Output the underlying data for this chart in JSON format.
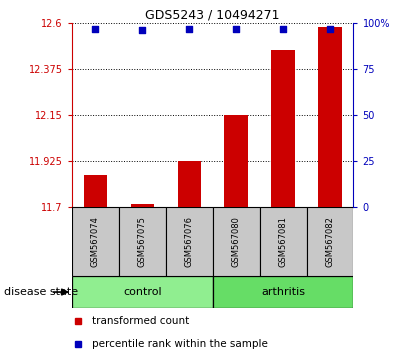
{
  "title": "GDS5243 / 10494271",
  "samples": [
    "GSM567074",
    "GSM567075",
    "GSM567076",
    "GSM567080",
    "GSM567081",
    "GSM567082"
  ],
  "red_values": [
    11.855,
    11.715,
    11.925,
    12.15,
    12.47,
    12.58
  ],
  "blue_values": [
    97,
    96,
    97,
    97,
    97,
    97
  ],
  "ylim_left": [
    11.7,
    12.6
  ],
  "ylim_right": [
    0,
    100
  ],
  "yticks_left": [
    11.7,
    11.925,
    12.15,
    12.375,
    12.6
  ],
  "yticks_right": [
    0,
    25,
    50,
    75,
    100
  ],
  "ytick_labels_left": [
    "11.7",
    "11.925",
    "12.15",
    "12.375",
    "12.6"
  ],
  "ytick_labels_right": [
    "0",
    "25",
    "50",
    "75",
    "100%"
  ],
  "groups": [
    {
      "label": "control",
      "indices": [
        0,
        1,
        2
      ],
      "color": "#90EE90"
    },
    {
      "label": "arthritis",
      "indices": [
        3,
        4,
        5
      ],
      "color": "#66DD66"
    }
  ],
  "bar_color": "#CC0000",
  "dot_color": "#0000BB",
  "bar_width": 0.5,
  "group_label": "disease state",
  "legend_red": "transformed count",
  "legend_blue": "percentile rank within the sample",
  "label_area_bg": "#C8C8C8",
  "title_fontsize": 9,
  "tick_fontsize": 7,
  "sample_fontsize": 6,
  "group_fontsize": 8,
  "legend_fontsize": 7.5
}
